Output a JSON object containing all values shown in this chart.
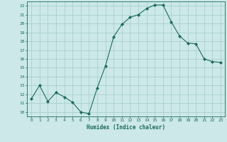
{
  "x": [
    0,
    1,
    2,
    3,
    4,
    5,
    6,
    7,
    8,
    9,
    10,
    11,
    12,
    13,
    14,
    15,
    16,
    17,
    18,
    19,
    20,
    21,
    22,
    23
  ],
  "y": [
    11.5,
    13.0,
    11.2,
    12.2,
    11.7,
    11.1,
    10.0,
    9.8,
    12.7,
    15.2,
    18.5,
    19.9,
    20.7,
    21.0,
    21.7,
    22.1,
    22.1,
    20.2,
    18.6,
    17.8,
    17.7,
    16.0,
    15.7,
    15.6
  ],
  "line_color": "#1a6b5a",
  "marker": "D",
  "marker_size": 2.0,
  "bg_color": "#cce8e8",
  "grid_color": "#aacfcf",
  "xlabel": "Humidex (Indice chaleur)",
  "xlim": [
    -0.5,
    23.5
  ],
  "ylim": [
    9.5,
    22.5
  ],
  "xticks": [
    0,
    1,
    2,
    3,
    4,
    5,
    6,
    7,
    8,
    9,
    10,
    11,
    12,
    13,
    14,
    15,
    16,
    17,
    18,
    19,
    20,
    21,
    22,
    23
  ],
  "yticks": [
    10,
    11,
    12,
    13,
    14,
    15,
    16,
    17,
    18,
    19,
    20,
    21,
    22
  ],
  "tick_color": "#1a6b5a",
  "label_color": "#1a6b5a",
  "spine_color": "#1a6b5a"
}
